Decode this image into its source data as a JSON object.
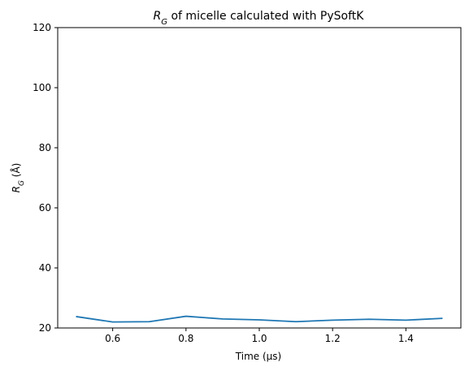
{
  "chart_data": {
    "type": "line",
    "title": {
      "main_symbol": "R",
      "main_subscript": "G",
      "rest": " of micelle calculated with PySoftK"
    },
    "xlabel": "Time (μs)",
    "ylabel": {
      "symbol": "R",
      "subscript": "G",
      "unit": " (Å)"
    },
    "x": [
      0.5,
      0.6,
      0.7,
      0.8,
      0.9,
      1.0,
      1.1,
      1.2,
      1.3,
      1.4,
      1.5
    ],
    "series": [
      {
        "values": [
          23.8,
          22.0,
          22.1,
          23.9,
          23.0,
          22.7,
          22.1,
          22.6,
          22.9,
          22.6,
          23.2
        ],
        "color": "#1f77b4"
      }
    ],
    "xlim": [
      0.45,
      1.55
    ],
    "ylim": [
      20,
      120
    ],
    "xticks": [
      0.6,
      0.8,
      1.0,
      1.2,
      1.4
    ],
    "xtick_labels": [
      "0.6",
      "0.8",
      "1.0",
      "1.2",
      "1.4"
    ],
    "yticks": [
      20,
      40,
      60,
      80,
      100,
      120
    ],
    "ytick_labels": [
      "20",
      "40",
      "60",
      "80",
      "100",
      "120"
    ],
    "grid": false,
    "legend": null
  }
}
